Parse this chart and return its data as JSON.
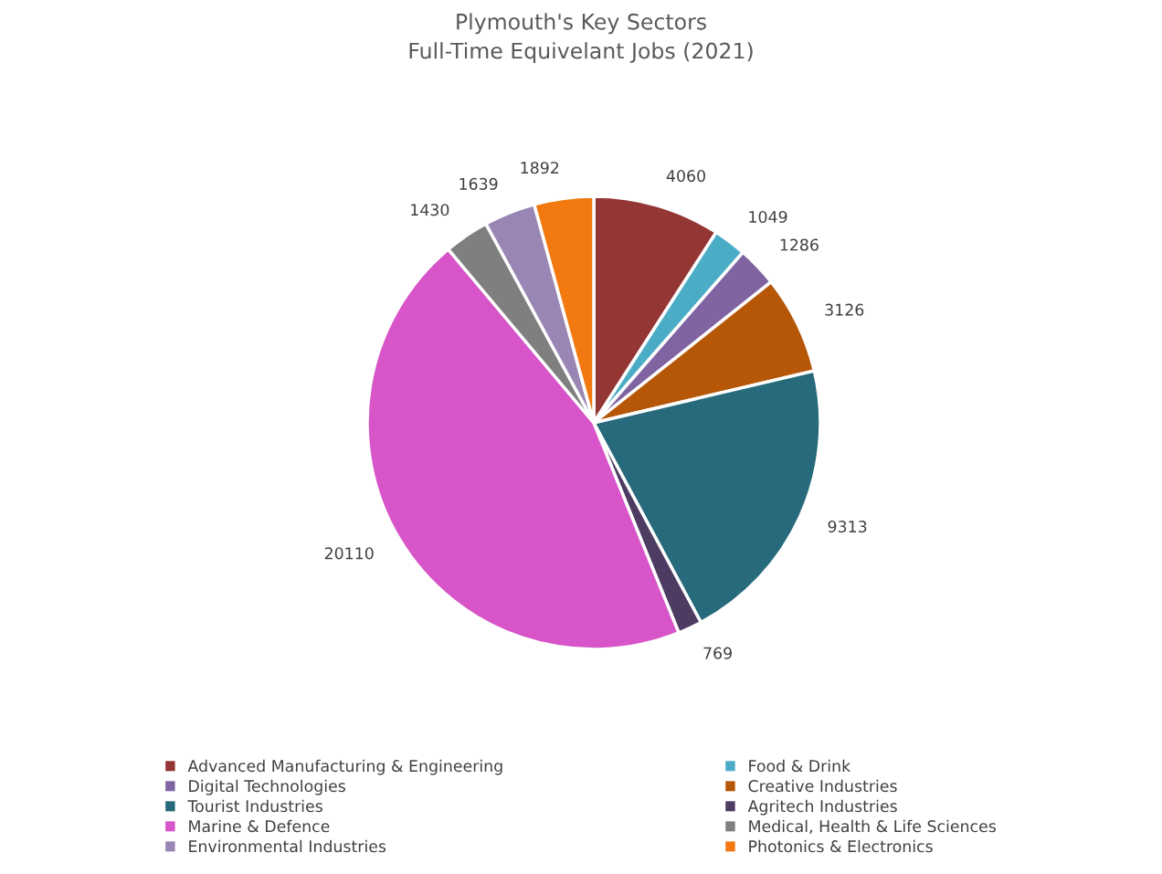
{
  "chart_data": {
    "type": "pie",
    "title": "Plymouth's Key Sectors\nFull-Time Equivelant Jobs (2021)",
    "categories": [
      "Advanced Manufacturing & Engineering",
      "Food & Drink",
      "Digital Technologies",
      "Creative Industries",
      "Tourist Industries",
      "Agritech Industries",
      "Marine & Defence",
      "Medical, Health & Life Sciences",
      "Environmental Industries",
      "Photonics & Electronics"
    ],
    "values": [
      4060,
      1049,
      1286,
      3126,
      9313,
      769,
      20110,
      1430,
      1639,
      1892
    ],
    "colors": [
      "#943634",
      "#4bacc6",
      "#8064a2",
      "#b65708",
      "#276a7c",
      "#4d3b62",
      "#d755c8",
      "#7f7f7f",
      "#9a86b4",
      "#f27810"
    ],
    "data_labels": true,
    "legend": "bottom"
  }
}
